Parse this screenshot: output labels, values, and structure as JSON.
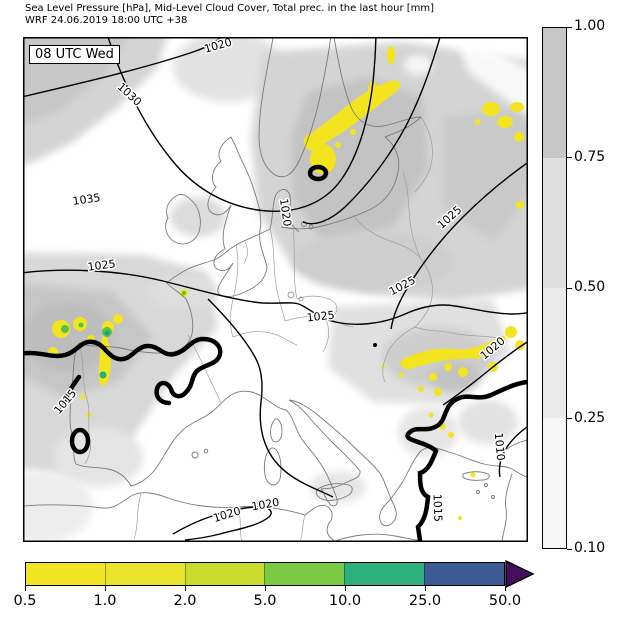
{
  "title": {
    "line1": "Sea Level Pressure [hPa], Mid-Level Cloud Cover, Total prec. in the last hour [mm]",
    "line2": "WRF 24.06.2019 18:00 UTC +38"
  },
  "map": {
    "timestamp_label": "08 UTC Wed",
    "isobar_labels": [
      {
        "text": "1020"
      },
      {
        "text": "1030"
      },
      {
        "text": "1035"
      },
      {
        "text": "1025"
      },
      {
        "text": "1020"
      },
      {
        "text": "1025"
      },
      {
        "text": "1025"
      },
      {
        "text": "1025"
      },
      {
        "text": "1020"
      },
      {
        "text": "1015"
      },
      {
        "text": "1015"
      },
      {
        "text": "1010"
      },
      {
        "text": "1020"
      },
      {
        "text": "1020"
      }
    ],
    "colors": {
      "precip_yellow": "#f2e41f",
      "precip_green": "#55c146",
      "precip_teal": "#1fa07c",
      "contour": "#000000",
      "coastline": "#7a7a7a",
      "border": "#9e9e9e"
    }
  },
  "right_colorbar": {
    "ticks": [
      "1.00",
      "0.75",
      "0.50",
      "0.25",
      "0.10"
    ],
    "segment_colors_top_to_bottom": [
      "#c6c6c6",
      "#dfdfdf",
      "#eaeaea",
      "#f7f7f7"
    ]
  },
  "bottom_colorbar": {
    "ticks": [
      "0.5",
      "1.0",
      "2.0",
      "5.0",
      "10.0",
      "25.0",
      "50.0"
    ],
    "segment_colors": [
      "#f1e524",
      "#eae32b",
      "#c9dc2e",
      "#7ec944",
      "#2bb07e",
      "#3d5a95"
    ],
    "extend_color": "#450e5c"
  }
}
